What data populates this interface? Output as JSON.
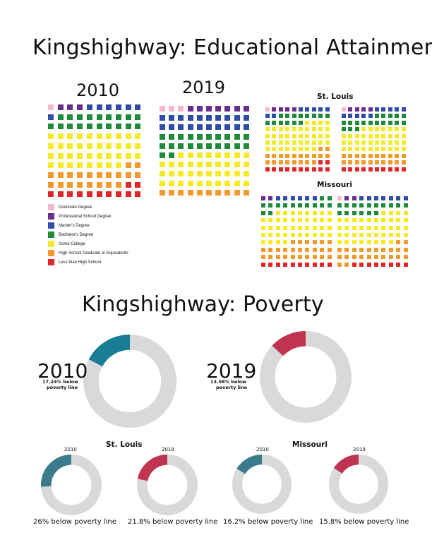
{
  "titles": {
    "education": "Kingshighway: Educational Attainment",
    "poverty": "Kingshighway: Poverty"
  },
  "colors": {
    "doctorate": "#f4b8cf",
    "professional": "#6a2c8f",
    "masters": "#2f4da6",
    "bachelors": "#1f8a3a",
    "some_college": "#f5ea27",
    "high_school": "#f29a2e",
    "less_than_hs": "#e0262b",
    "ring_bg": "#d9d9d9",
    "teal_big": "#187e94",
    "teal_small": "#3a7c8c",
    "crimson": "#c0344f"
  },
  "education": {
    "kingshighway_labels": [
      "2010",
      "2019"
    ],
    "stlouis_label": "St. Louis",
    "missouri_label": "Missouri",
    "legend": [
      {
        "key": "doctorate",
        "label": "Doctorate Degree"
      },
      {
        "key": "professional",
        "label": "Professional School Degree"
      },
      {
        "key": "masters",
        "label": "Master's Degree"
      },
      {
        "key": "bachelors",
        "label": "Bachelor's Degree"
      },
      {
        "key": "some_college",
        "label": "Some College"
      },
      {
        "key": "high_school",
        "label": "High School Graduate or Equivalents"
      },
      {
        "key": "less_than_hs",
        "label": "Less than High School"
      }
    ]
  },
  "poverty": {
    "big": [
      {
        "year": "2010",
        "note1": "17.24% below",
        "note2": "poverty line"
      },
      {
        "year": "2019",
        "note1": "13.08% below",
        "note2": "poverty line"
      }
    ],
    "stlouis_label": "St. Louis",
    "missouri_label": "Missouri",
    "small": [
      {
        "year": "2010",
        "caption": "26% below poverty line"
      },
      {
        "year": "2019",
        "caption": "21.8% below poverty line"
      },
      {
        "year": "2010",
        "caption": "16.2% below poverty line"
      },
      {
        "year": "2019",
        "caption": "15.8% below poverty line"
      }
    ]
  },
  "chart_data": [
    {
      "type": "waffle",
      "title": "2010",
      "categories": [
        "Doctorate Degree",
        "Professional School Degree",
        "Master's Degree",
        "Bachelor's Degree",
        "Some College",
        "High School Graduate or Equivalents",
        "Less than High School"
      ],
      "values": [
        1,
        3,
        7,
        19,
        38,
        20,
        12
      ]
    },
    {
      "type": "waffle",
      "title": "2019",
      "categories": [
        "Doctorate Degree",
        "Professional School Degree",
        "Master's Degree",
        "Bachelor's Degree",
        "Some College",
        "High School Graduate or Equivalents",
        "Less than High School"
      ],
      "values": [
        3,
        7,
        20,
        22,
        38,
        10,
        0
      ]
    },
    {
      "type": "waffle",
      "title": "St. Louis 2010",
      "categories": [
        "Doctorate Degree",
        "Professional School Degree",
        "Master's Degree",
        "Bachelor's Degree",
        "Some College",
        "High School Graduate or Equivalents",
        "Less than High School"
      ],
      "values": [
        1,
        4,
        7,
        14,
        42,
        20,
        12
      ]
    },
    {
      "type": "waffle",
      "title": "St. Louis 2019",
      "categories": [
        "Doctorate Degree",
        "Professional School Degree",
        "Master's Degree",
        "Bachelor's Degree",
        "Some College",
        "High School Graduate or Equivalents",
        "Less than High School"
      ],
      "values": [
        1,
        4,
        10,
        18,
        37,
        20,
        10
      ]
    },
    {
      "type": "waffle",
      "title": "Missouri 2010",
      "categories": [
        "Doctorate Degree",
        "Professional School Degree",
        "Master's Degree",
        "Bachelor's Degree",
        "Some College",
        "High School Graduate or Equivalents",
        "Less than High School"
      ],
      "values": [
        0,
        2,
        6,
        14,
        42,
        26,
        10
      ]
    },
    {
      "type": "waffle",
      "title": "Missouri 2019",
      "categories": [
        "Doctorate Degree",
        "Professional School Degree",
        "Master's Degree",
        "Bachelor's Degree",
        "Some College",
        "High School Graduate or Equivalents",
        "Less than High School"
      ],
      "values": [
        1,
        2,
        7,
        16,
        42,
        24,
        8
      ]
    },
    {
      "type": "pie",
      "title": "Kingshighway 2010",
      "categories": [
        "below poverty line",
        "other"
      ],
      "values": [
        17.24,
        82.76
      ]
    },
    {
      "type": "pie",
      "title": "Kingshighway 2019",
      "categories": [
        "below poverty line",
        "other"
      ],
      "values": [
        13.08,
        86.92
      ]
    },
    {
      "type": "pie",
      "title": "St. Louis 2010",
      "categories": [
        "below poverty line",
        "other"
      ],
      "values": [
        26,
        74
      ]
    },
    {
      "type": "pie",
      "title": "St. Louis 2019",
      "categories": [
        "below poverty line",
        "other"
      ],
      "values": [
        21.8,
        78.2
      ]
    },
    {
      "type": "pie",
      "title": "Missouri 2010",
      "categories": [
        "below poverty line",
        "other"
      ],
      "values": [
        16.2,
        83.8
      ]
    },
    {
      "type": "pie",
      "title": "Missouri 2019",
      "categories": [
        "below poverty line",
        "other"
      ],
      "values": [
        15.8,
        84.2
      ]
    }
  ]
}
